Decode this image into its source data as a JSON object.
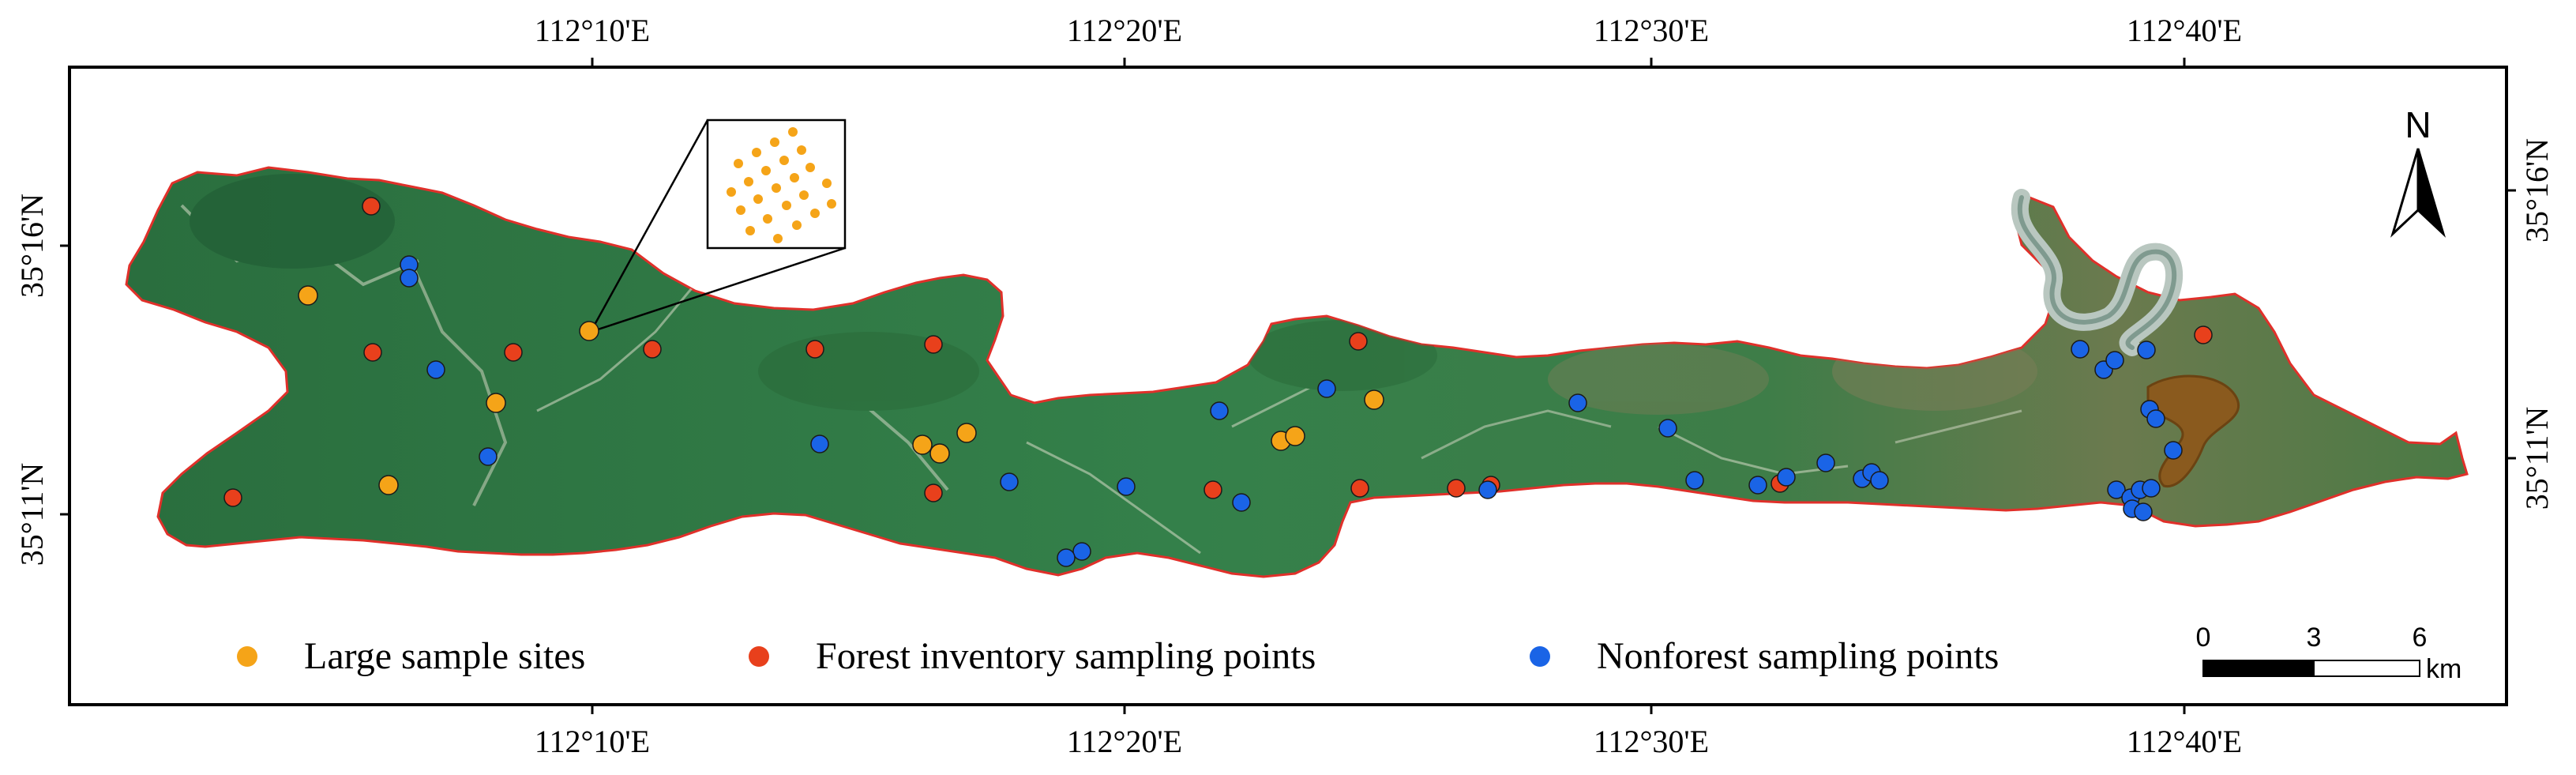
{
  "map": {
    "axes": {
      "top_labels": [
        "112°10'E",
        "112°20'E",
        "112°30'E",
        "112°40'E"
      ],
      "bottom_labels": [
        "112°10'E",
        "112°20'E",
        "112°30'E",
        "112°40'E"
      ],
      "left_labels": [
        "35°16'N",
        "35°11'N"
      ],
      "right_labels": [
        "35°16'N",
        "35°11'N"
      ]
    },
    "north_label": "N",
    "scale_bar": {
      "ticks": [
        "0",
        "3",
        "6"
      ],
      "unit": "km"
    },
    "legend": [
      {
        "label": "Large sample sites",
        "color": "#f5a418"
      },
      {
        "label": "Forest inventory sampling points",
        "color": "#e8401c"
      },
      {
        "label": "Nonforest sampling points",
        "color": "#1a64e6"
      }
    ],
    "colors": {
      "forest": "#2f7a45",
      "boundary": "#e0302a",
      "large_site": "#f5a418",
      "forest_point": "#e8401c",
      "nonforest_point": "#1a64e6"
    }
  }
}
